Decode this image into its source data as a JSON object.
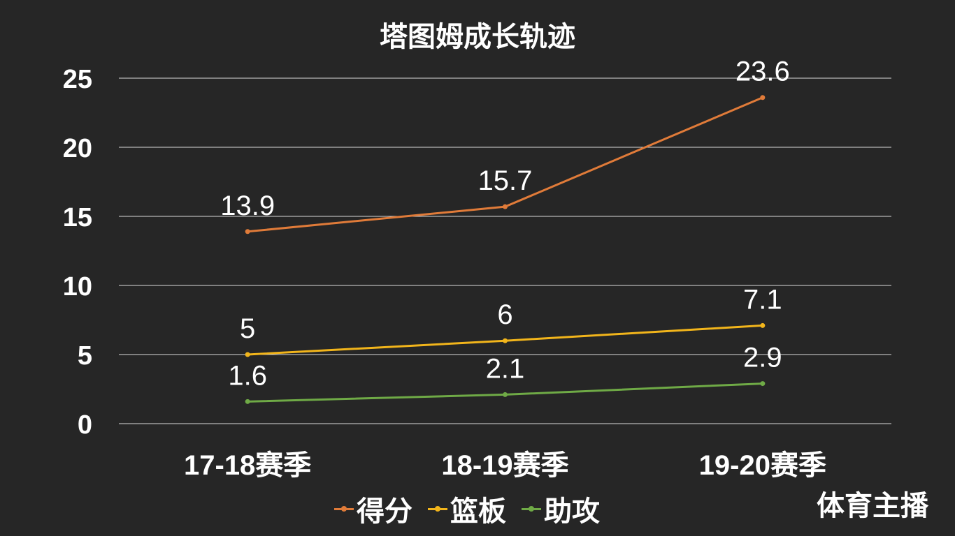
{
  "title": "塔图姆成长轨迹",
  "watermark": "体育主播",
  "legend": [
    {
      "label": "得分",
      "color": "#E07B39"
    },
    {
      "label": "篮板",
      "color": "#F2B51B"
    },
    {
      "label": "助攻",
      "color": "#6FAA46"
    }
  ],
  "chart_data": {
    "type": "line",
    "title": "塔图姆成长轨迹",
    "categories": [
      "17-18赛季",
      "18-19赛季",
      "19-20赛季"
    ],
    "series": [
      {
        "name": "得分",
        "values": [
          13.9,
          15.7,
          23.6
        ],
        "color": "#E07B39"
      },
      {
        "name": "篮板",
        "values": [
          5,
          6,
          7.1
        ],
        "color": "#F2B51B"
      },
      {
        "name": "助攻",
        "values": [
          1.6,
          2.1,
          2.9
        ],
        "color": "#6FAA46"
      }
    ],
    "xlabel": "",
    "ylabel": "",
    "ylim": [
      0,
      25
    ],
    "yticks": [
      0,
      5,
      10,
      15,
      20,
      25
    ],
    "grid": true,
    "legend_position": "bottom",
    "data_labels": true
  }
}
